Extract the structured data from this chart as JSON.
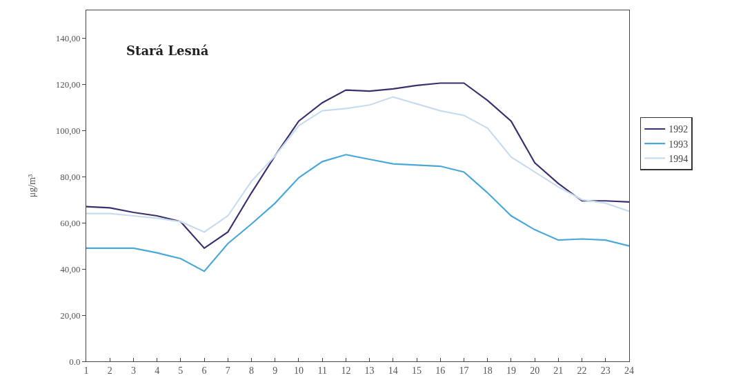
{
  "chart_data": {
    "type": "line",
    "title": "Stará Lesná",
    "ylabel": "μg/m³",
    "x": [
      1,
      2,
      3,
      4,
      5,
      6,
      7,
      8,
      9,
      10,
      11,
      12,
      13,
      14,
      15,
      16,
      17,
      18,
      19,
      20,
      21,
      22,
      23,
      24
    ],
    "xlim": [
      1,
      24
    ],
    "xticks": [
      1,
      2,
      3,
      4,
      5,
      6,
      7,
      8,
      9,
      10,
      11,
      12,
      13,
      14,
      15,
      16,
      17,
      18,
      19,
      20,
      21,
      22,
      23,
      24
    ],
    "ylim": [
      0,
      152
    ],
    "yticks": [
      {
        "value": 0,
        "label": "0.0"
      },
      {
        "value": 20,
        "label": "20,00"
      },
      {
        "value": 40,
        "label": "40,00"
      },
      {
        "value": 60,
        "label": "60,00"
      },
      {
        "value": 80,
        "label": "80,00"
      },
      {
        "value": 100,
        "label": "100,00"
      },
      {
        "value": 120,
        "label": "120,00"
      },
      {
        "value": 140,
        "label": "140,00"
      }
    ],
    "grid": false,
    "legend": "right",
    "marker": "none",
    "line_style": "solid",
    "series": [
      {
        "name": "1992",
        "color": "#3b2f6e",
        "values": [
          67,
          66.5,
          64.5,
          63,
          60.5,
          49,
          56,
          73,
          89,
          104,
          112,
          117.5,
          117,
          118,
          119.5,
          120.5,
          120.5,
          113,
          104,
          86,
          77,
          69.5,
          69.5,
          69
        ]
      },
      {
        "name": "1993",
        "color": "#4aa8d8",
        "values": [
          49,
          49,
          49,
          47,
          44.5,
          39,
          51,
          59.5,
          68.5,
          79.5,
          86.5,
          89.5,
          87.5,
          85.5,
          85,
          84.5,
          82,
          73,
          63,
          57,
          52.5,
          53,
          52.5,
          50
        ]
      },
      {
        "name": "1994",
        "color": "#c8dcf0",
        "values": [
          64,
          64,
          63,
          62,
          60.5,
          56,
          63,
          78,
          89,
          102,
          108.5,
          109.5,
          111,
          114.5,
          111.5,
          108.5,
          106.5,
          101,
          88.5,
          82,
          75.5,
          70,
          68.5,
          65
        ]
      }
    ]
  }
}
